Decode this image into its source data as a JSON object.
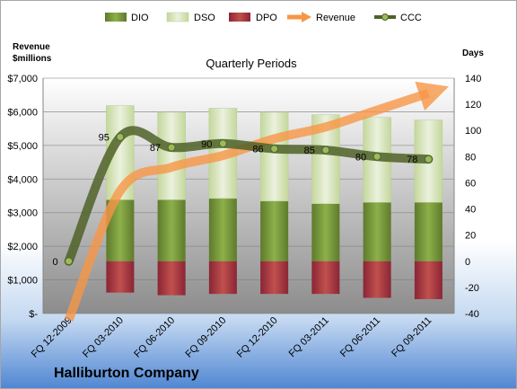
{
  "chart_data": {
    "type": "bar",
    "title": "Quarterly Periods",
    "company": "Halliburton Company",
    "y_left_label_line1": "Revenue",
    "y_left_label_line2": "$millions",
    "y_right_label": "Days",
    "categories": [
      "FQ 12-2009",
      "FQ 03-2010",
      "FQ 06-2010",
      "FQ 09-2010",
      "FQ 12-2010",
      "FQ 03-2011",
      "FQ 06-2011",
      "FQ 09-2011"
    ],
    "left_axis": {
      "min": 0,
      "max": 7000,
      "step": 1000,
      "tick_labels": [
        "$-",
        "$1,000",
        "$2,000",
        "$3,000",
        "$4,000",
        "$5,000",
        "$6,000",
        "$7,000"
      ]
    },
    "right_axis": {
      "min": -40,
      "max": 140,
      "step": 20,
      "tick_labels": [
        "-40",
        "-20",
        "0",
        "20",
        "40",
        "60",
        "80",
        "100",
        "120",
        "140"
      ]
    },
    "series": [
      {
        "name": "DIO",
        "type": "bar",
        "axis": "right",
        "values": [
          0,
          47,
          47,
          48,
          46,
          44,
          45,
          45
        ]
      },
      {
        "name": "DSO",
        "type": "bar",
        "axis": "right",
        "values": [
          0,
          72,
          67,
          69,
          68,
          68,
          65,
          63
        ]
      },
      {
        "name": "DPO",
        "type": "bar",
        "axis": "right",
        "values": [
          0,
          -24,
          -26,
          -25,
          -25,
          -25,
          -28,
          -29
        ]
      },
      {
        "name": "Revenue",
        "type": "line",
        "axis": "left",
        "values": [
          -200,
          3650,
          4350,
          4700,
          5200,
          5550,
          6050,
          6550
        ]
      },
      {
        "name": "CCC",
        "type": "line",
        "axis": "right",
        "values": [
          0,
          95,
          87,
          90,
          86,
          85,
          80,
          78
        ],
        "data_labels": [
          "0",
          "95",
          "87",
          "90",
          "86",
          "85",
          "80",
          "78"
        ]
      }
    ],
    "legend": {
      "position": "top",
      "items": [
        "DIO",
        "DSO",
        "DPO",
        "Revenue",
        "CCC"
      ]
    },
    "colors": {
      "DIO": "#77933C",
      "DSO": "#D7E4BD",
      "DPO": "#A0364B",
      "Revenue": "#F79646",
      "CCC": "#4F6228"
    },
    "grid": true
  }
}
